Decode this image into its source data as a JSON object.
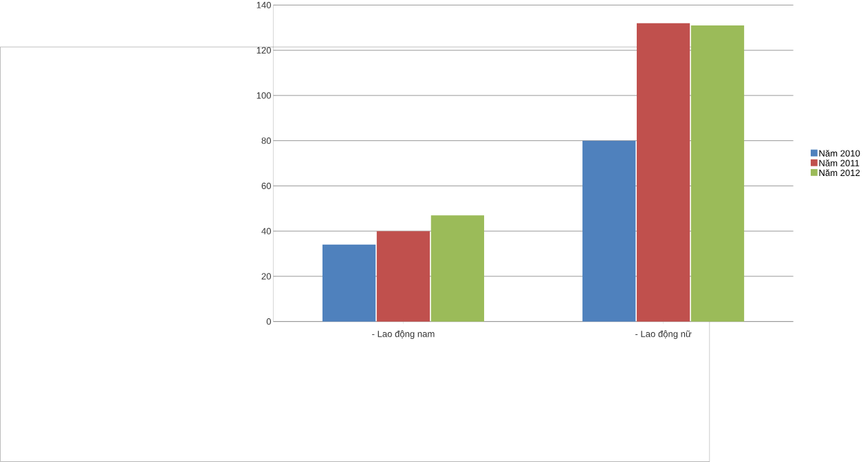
{
  "chart_data": {
    "type": "bar",
    "categories": [
      "- Lao động nam",
      "- Lao động nữ"
    ],
    "series": [
      {
        "name": "Năm 2010",
        "color": "#4f81bd",
        "values": [
          34,
          80
        ]
      },
      {
        "name": "Năm 2011",
        "color": "#c0504d",
        "values": [
          40,
          132
        ]
      },
      {
        "name": "Năm 2012",
        "color": "#9bbb59",
        "values": [
          47,
          131
        ]
      }
    ],
    "ylim": [
      0,
      140
    ],
    "yticks": [
      0,
      20,
      40,
      60,
      80,
      100,
      120,
      140
    ],
    "grid": "y",
    "legend": "right"
  }
}
